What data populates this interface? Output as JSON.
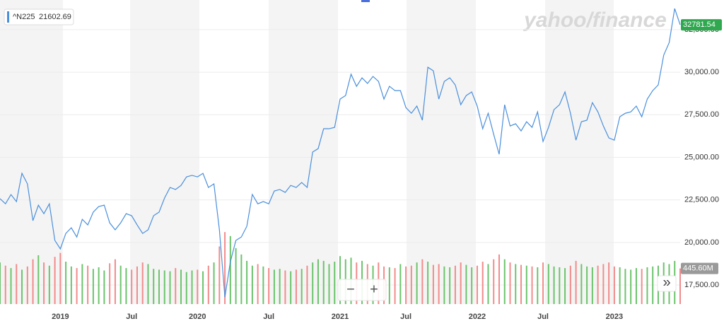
{
  "chart_data": {
    "type": "line",
    "legend_value": 21602.69,
    "watermark": "yahoo/finance",
    "controls": {
      "zoom_out": "−",
      "zoom_in": "+",
      "next": "»"
    },
    "categories": [
      null,
      null,
      null,
      null,
      null,
      null,
      null,
      null,
      null,
      null,
      null,
      "2019",
      null,
      null,
      null,
      null,
      null,
      null,
      null,
      null,
      null,
      null,
      null,
      null,
      "Jul",
      null,
      null,
      null,
      null,
      null,
      null,
      null,
      null,
      null,
      null,
      null,
      "2020",
      null,
      null,
      null,
      null,
      null,
      null,
      null,
      null,
      null,
      null,
      null,
      null,
      "Jul",
      null,
      null,
      null,
      null,
      null,
      null,
      null,
      null,
      null,
      null,
      null,
      null,
      "2021",
      null,
      null,
      null,
      null,
      null,
      null,
      null,
      null,
      null,
      null,
      null,
      "Jul",
      null,
      null,
      null,
      null,
      null,
      null,
      null,
      null,
      null,
      null,
      null,
      null,
      "2022",
      null,
      null,
      null,
      null,
      null,
      null,
      null,
      null,
      null,
      null,
      null,
      "Jul",
      null,
      null,
      null,
      null,
      null,
      null,
      null,
      null,
      null,
      null,
      null,
      null,
      "2023",
      null,
      null,
      null,
      null,
      null,
      null,
      null,
      null,
      null,
      null,
      null,
      null
    ],
    "series": [
      {
        "name": "^N225",
        "color": "#4a8fdc",
        "values": [
          22570,
          22270,
          22810,
          22400,
          24060,
          23440,
          21280,
          22190,
          21690,
          22270,
          20120,
          19620,
          20530,
          20860,
          20320,
          21360,
          21030,
          21780,
          22110,
          22190,
          21150,
          20740,
          21150,
          21690,
          21570,
          21030,
          20530,
          20740,
          21570,
          21780,
          22610,
          23230,
          23110,
          23350,
          23850,
          23940,
          23850,
          24060,
          23230,
          23440,
          20740,
          16790,
          18870,
          20120,
          20320,
          20950,
          22820,
          22270,
          22400,
          22270,
          23020,
          23110,
          22940,
          23350,
          23230,
          23520,
          23230,
          25310,
          25510,
          26680,
          26680,
          26760,
          28420,
          28630,
          29880,
          29170,
          29670,
          29340,
          29750,
          29460,
          28420,
          29170,
          28920,
          28920,
          27920,
          27590,
          28010,
          27180,
          30290,
          30080,
          28420,
          29460,
          29670,
          29250,
          28090,
          28630,
          28840,
          28010,
          26680,
          27590,
          26350,
          25180,
          28090,
          26840,
          26970,
          26550,
          27090,
          26760,
          27670,
          25930,
          26760,
          27800,
          28090,
          28840,
          27590,
          26010,
          27090,
          27180,
          28210,
          27670,
          26840,
          26140,
          26010,
          27380,
          27590,
          27670,
          28010,
          27380,
          28420,
          28920,
          29250,
          31000,
          31740,
          33740,
          32781.54
        ],
        "value_labels": [
          null,
          null,
          null,
          null,
          null,
          null,
          null,
          null,
          null,
          null,
          null,
          null,
          null,
          null,
          null,
          null,
          null,
          null,
          null,
          null,
          null,
          null,
          null,
          null,
          null,
          null,
          null,
          null,
          null,
          null,
          null,
          null,
          null,
          null,
          null,
          null,
          null,
          null,
          null,
          null,
          null,
          null,
          null,
          null,
          null,
          null,
          null,
          null,
          null,
          null,
          null,
          null,
          null,
          null,
          null,
          null,
          null,
          null,
          null,
          null,
          null,
          null,
          null,
          null,
          null,
          null,
          null,
          null,
          null,
          null,
          null,
          null,
          null,
          null,
          null,
          null,
          null,
          null,
          null,
          null,
          null,
          null,
          null,
          null,
          null,
          null,
          null,
          null,
          null,
          null,
          null,
          null,
          null,
          null,
          null,
          null,
          null,
          null,
          null,
          null,
          null,
          null,
          null,
          null,
          null,
          null,
          null,
          null,
          null,
          null,
          null,
          null,
          null,
          null,
          null,
          null,
          null,
          null,
          null,
          null,
          null,
          null,
          null,
          null,
          "32781.54"
        ]
      },
      {
        "name": "Volume",
        "type": "bar",
        "axis": "y2",
        "up_color": "#6cc36c",
        "down_color": "#f28b8b",
        "values": [
          520,
          480,
          450,
          500,
          430,
          470,
          560,
          610,
          520,
          480,
          590,
          640,
          530,
          470,
          450,
          500,
          480,
          440,
          460,
          420,
          510,
          560,
          480,
          450,
          430,
          470,
          520,
          500,
          440,
          430,
          420,
          410,
          450,
          430,
          400,
          420,
          430,
          410,
          480,
          520,
          720,
          900,
          850,
          700,
          620,
          540,
          480,
          500,
          470,
          450,
          430,
          440,
          420,
          410,
          430,
          440,
          480,
          520,
          560,
          540,
          500,
          530,
          600,
          560,
          580,
          520,
          540,
          500,
          480,
          520,
          470,
          460,
          450,
          500,
          470,
          480,
          520,
          560,
          530,
          490,
          500,
          470,
          460,
          480,
          520,
          490,
          460,
          480,
          530,
          500,
          560,
          620,
          560,
          520,
          500,
          490,
          480,
          470,
          460,
          520,
          500,
          470,
          460,
          450,
          480,
          540,
          500,
          470,
          460,
          480,
          500,
          520,
          470,
          460,
          440,
          430,
          450,
          440,
          460,
          470,
          480,
          520,
          500,
          540,
          445.6
        ],
        "value_labels": [
          null,
          null,
          null,
          null,
          null,
          null,
          null,
          null,
          null,
          null,
          null,
          null,
          null,
          null,
          null,
          null,
          null,
          null,
          null,
          null,
          null,
          null,
          null,
          null,
          null,
          null,
          null,
          null,
          null,
          null,
          null,
          null,
          null,
          null,
          null,
          null,
          null,
          null,
          null,
          null,
          null,
          null,
          null,
          null,
          null,
          null,
          null,
          null,
          null,
          null,
          null,
          null,
          null,
          null,
          null,
          null,
          null,
          null,
          null,
          null,
          null,
          null,
          null,
          null,
          null,
          null,
          null,
          null,
          null,
          null,
          null,
          null,
          null,
          null,
          null,
          null,
          null,
          null,
          null,
          null,
          null,
          null,
          null,
          null,
          null,
          null,
          null,
          null,
          null,
          null,
          null,
          null,
          null,
          null,
          null,
          null,
          null,
          null,
          null,
          null,
          null,
          null,
          null,
          null,
          null,
          null,
          null,
          null,
          null,
          null,
          null,
          null,
          null,
          null,
          null,
          null,
          null,
          null,
          null,
          null,
          null,
          null,
          null,
          null,
          "445.60M"
        ]
      }
    ],
    "ylim": [
      16380,
      34240
    ],
    "yticks": [
      {
        "value": 17500,
        "label": "17,500.00"
      },
      {
        "value": 20000,
        "label": "20,000.00"
      },
      {
        "value": 22500,
        "label": "22,500.00"
      },
      {
        "value": 25000,
        "label": "25,000.00"
      },
      {
        "value": 27500,
        "label": "27,500.00"
      },
      {
        "value": 30000,
        "label": "30,000.00"
      },
      {
        "value": 32500,
        "label": "32,500.00"
      }
    ],
    "y2lim": [
      0,
      3800
    ],
    "grid": true
  }
}
